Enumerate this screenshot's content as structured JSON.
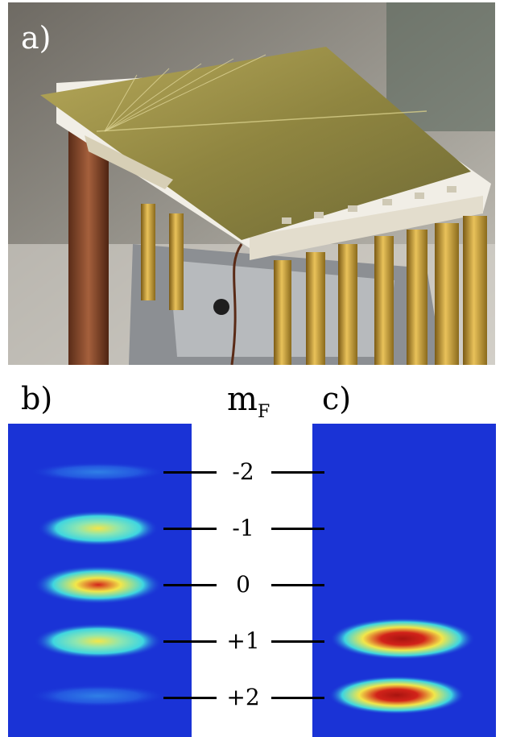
{
  "figure": {
    "panel_labels": {
      "a": "a)",
      "b": "b)",
      "c": "c)"
    },
    "header": {
      "symbol": "m",
      "subscript": "F"
    },
    "mf_levels": [
      "-2",
      "-1",
      "0",
      "+1",
      "+2"
    ],
    "colors": {
      "background_blue": "#1a33d6",
      "cloud_cyan": "#3fd6e0",
      "cloud_yellow": "#f2e64a",
      "cloud_red": "#d2231a"
    }
  }
}
